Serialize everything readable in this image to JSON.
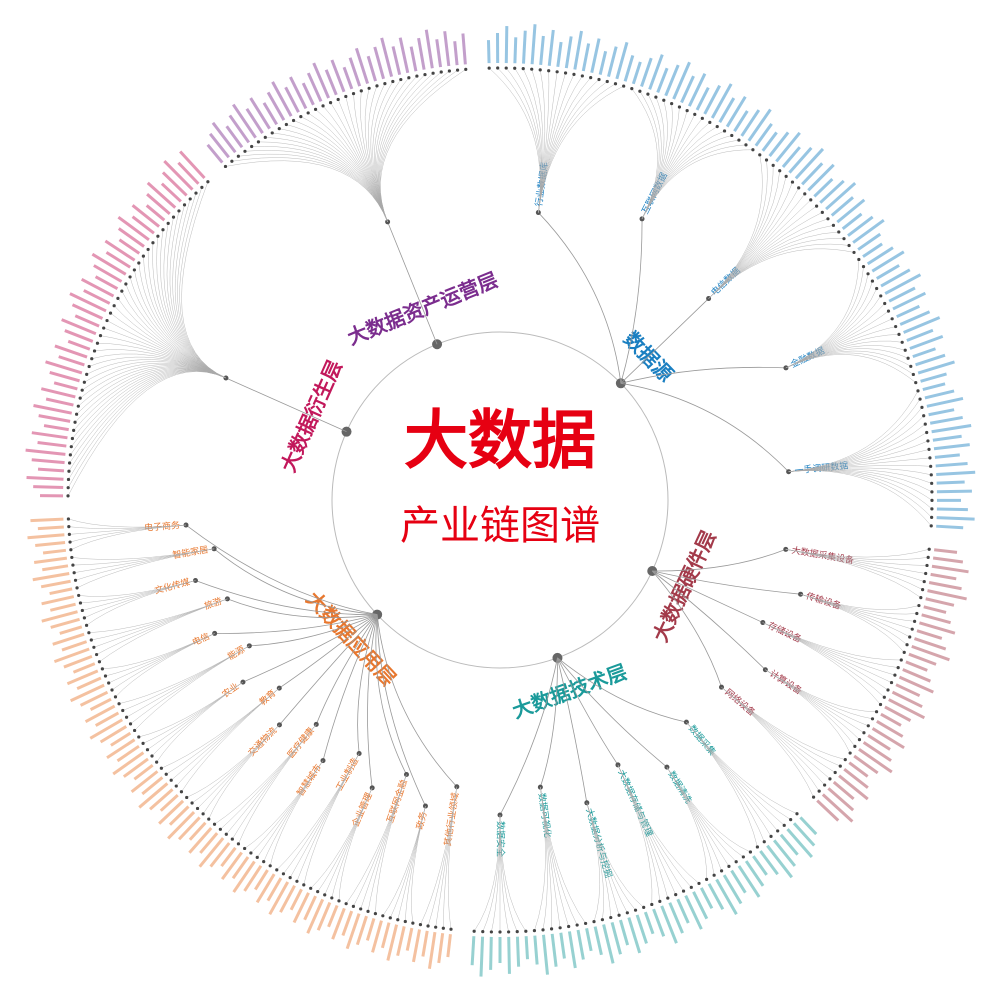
{
  "title": "大数据",
  "subtitle": "产业链图谱",
  "layers": [
    {
      "name": "数据源",
      "color": "#1a7fc1",
      "children": [
        "行业数据库",
        "互联网数据",
        "电信数据",
        "金融数据",
        "一手调研数据"
      ]
    },
    {
      "name": "大数据硬件层",
      "color": "#a33a4a",
      "children": [
        "大数据采集设备",
        "传输设备",
        "存储设备",
        "计算设备",
        "网络设备"
      ]
    },
    {
      "name": "大数据技术层",
      "color": "#1a9a9a",
      "children": [
        "数据采集",
        "数据清洗",
        "大数据存储与管理",
        "大数据分析与挖掘",
        "数据可视化",
        "数据安全"
      ]
    },
    {
      "name": "大数据应用层",
      "color": "#e8772e",
      "children": [
        "其他行业领域",
        "政务",
        "互联网金融",
        "企业管理",
        "工业制造",
        "智慧城市",
        "医疗健康",
        "交通物流",
        "教育",
        "农业",
        "能源",
        "电信",
        "旅游",
        "文化传媒",
        "智能家居",
        "电子商务"
      ]
    },
    {
      "name": "大数据衍生层",
      "color": "#c2185b",
      "children": []
    },
    {
      "name": "大数据资产运营层",
      "color": "#7b2d8e",
      "children": []
    }
  ]
}
